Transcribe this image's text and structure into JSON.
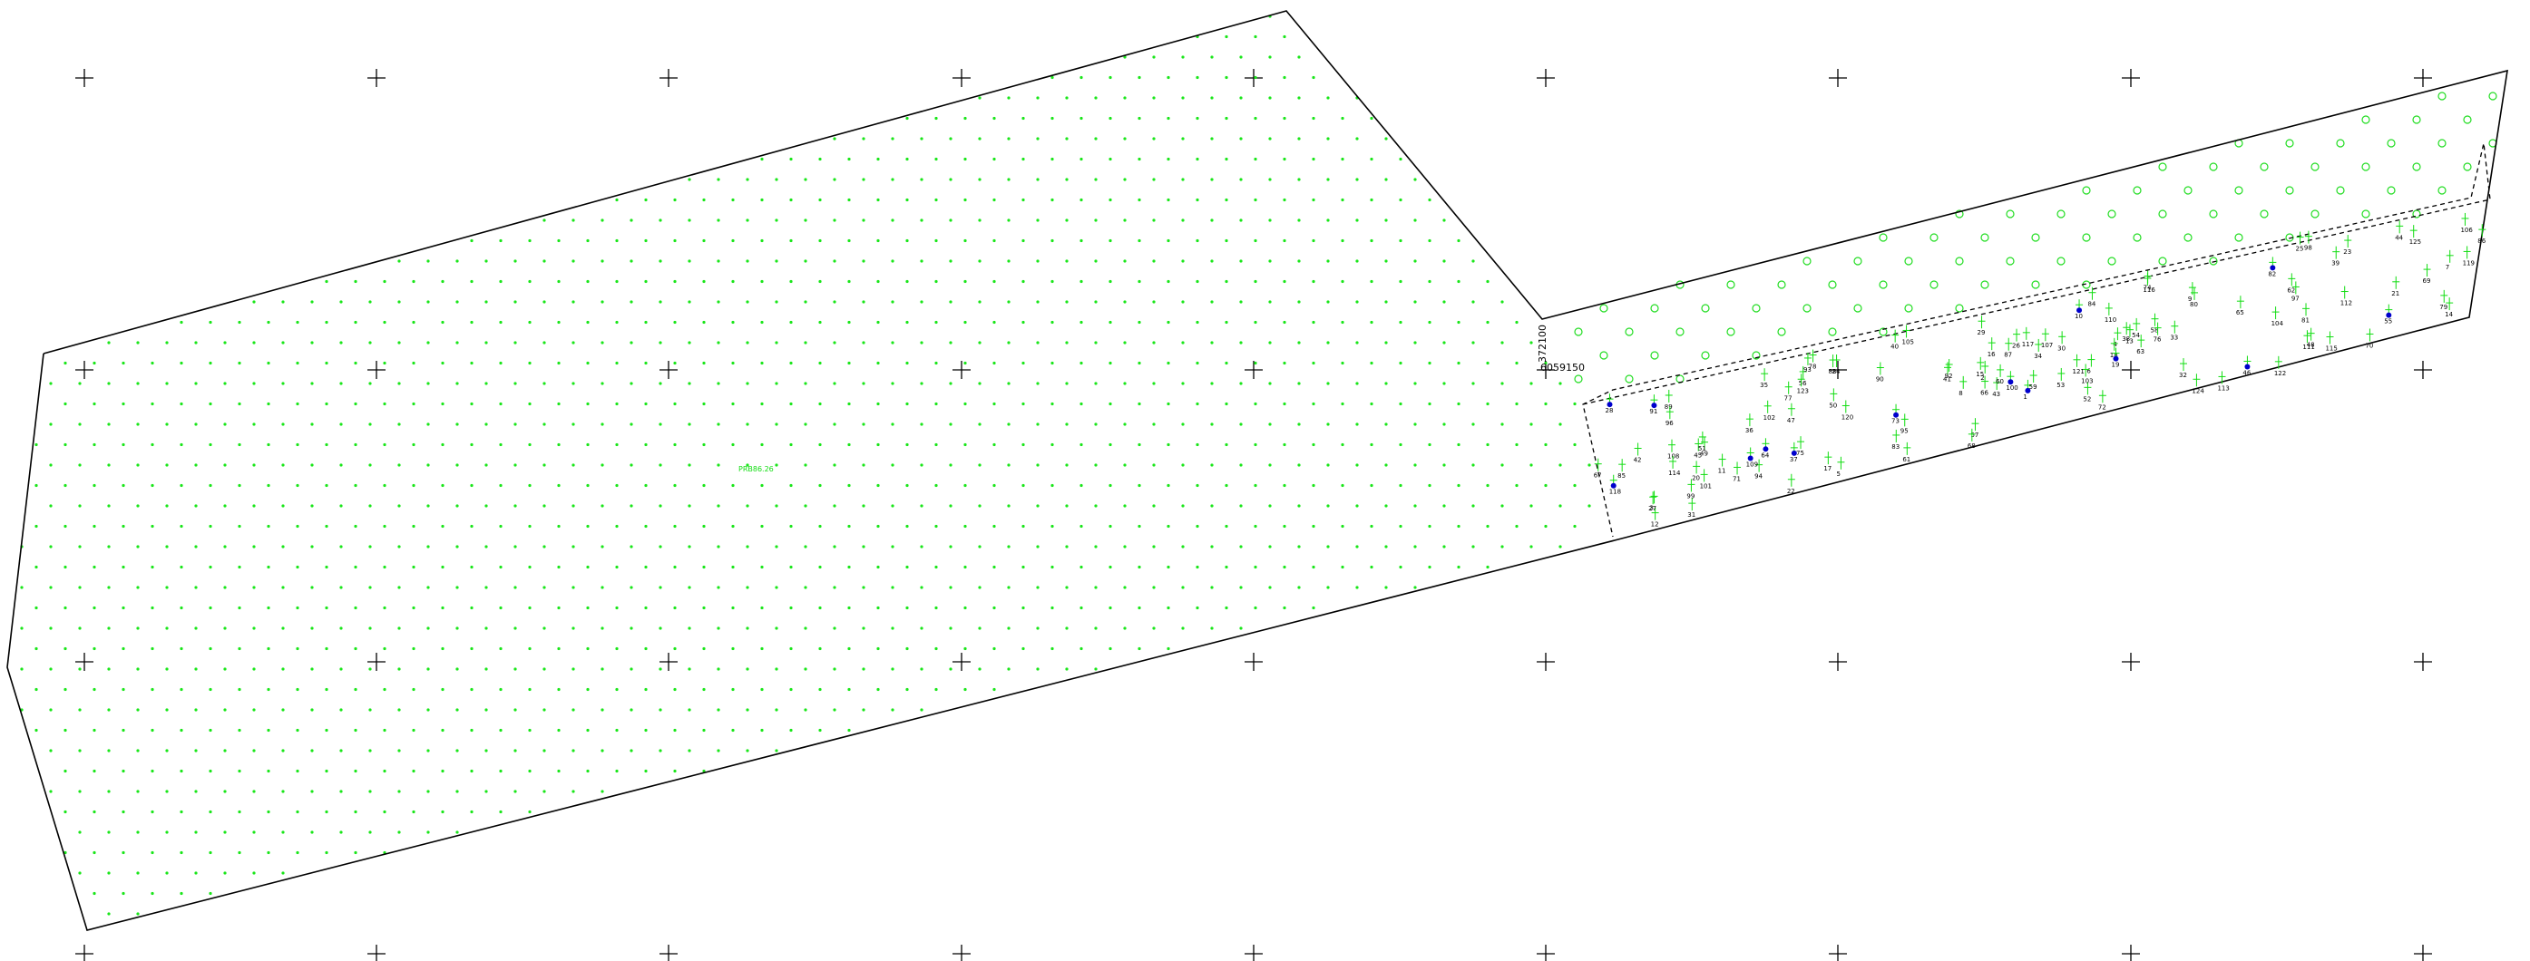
{
  "colors": {
    "background": "#ffffff",
    "boundary": "#000000",
    "grid_mark": "#000000",
    "dot": "#19e619",
    "circle": "#22dd22",
    "tree_label": "#11dd11",
    "tree_number": "#000000",
    "tree_symbol_blue": "#0000cc"
  },
  "annotations": {
    "northing": "6059150",
    "easting": "372100",
    "stray_label": "PRB86.26"
  },
  "tree_numbers": [
    "1",
    "2",
    "3",
    "4",
    "5",
    "6",
    "7",
    "8",
    "9",
    "10",
    "11",
    "12",
    "13",
    "14",
    "15",
    "16",
    "17",
    "18",
    "19",
    "20",
    "21",
    "22",
    "23",
    "24",
    "25",
    "26",
    "27",
    "28",
    "29",
    "30",
    "31",
    "32",
    "33",
    "34",
    "35",
    "36",
    "37",
    "38",
    "39",
    "40",
    "41",
    "42",
    "43",
    "44",
    "45",
    "46",
    "47",
    "48",
    "49",
    "50",
    "51",
    "52",
    "53",
    "54",
    "55",
    "56",
    "57",
    "58",
    "59",
    "60",
    "61",
    "62",
    "63",
    "64",
    "65",
    "66",
    "67",
    "68",
    "69",
    "70",
    "71",
    "72",
    "73",
    "74",
    "75",
    "76",
    "77",
    "78",
    "79",
    "80",
    "81",
    "82",
    "83",
    "84",
    "85",
    "86",
    "87",
    "88",
    "89",
    "90",
    "91",
    "92",
    "93",
    "94",
    "95",
    "96",
    "97",
    "98",
    "99",
    "100",
    "101",
    "102",
    "103",
    "104",
    "105",
    "106",
    "107",
    "108",
    "109",
    "110",
    "111",
    "112",
    "113",
    "114",
    "115",
    "116",
    "117",
    "118",
    "119",
    "120",
    "121",
    "122",
    "123",
    "124",
    "125"
  ]
}
